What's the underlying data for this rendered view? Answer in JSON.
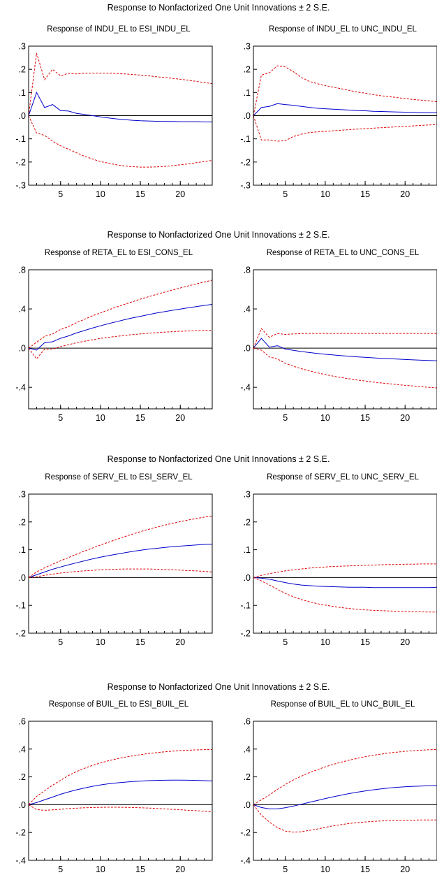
{
  "groups": [
    {
      "title": "Response to Nonfactorized One Unit Innovations ± 2 S.E."
    },
    {
      "title": "Response to Nonfactorized One Unit Innovations ± 2 S.E."
    },
    {
      "title": "Response to Nonfactorized One Unit Innovations ± 2 S.E."
    },
    {
      "title": "Response to Nonfactorized One Unit Innovations ± 2 S.E."
    }
  ],
  "colors": {
    "response": "#0000cc",
    "bands": "#dd0000",
    "zero_line": "#000000"
  },
  "chart_data": [
    {
      "type": "line",
      "title": "Response of INDU_EL to ESI_INDU_EL",
      "xlim": [
        1,
        24
      ],
      "ylim": [
        -0.3,
        0.3
      ],
      "xticks": [
        5,
        10,
        15,
        20
      ],
      "yticks": [
        -0.3,
        -0.2,
        -0.1,
        0.0,
        0.1,
        0.2,
        0.3
      ],
      "ytick_labels": [
        "-.3",
        "-.2",
        "-.1",
        ".0",
        ".1",
        ".2",
        ".3"
      ],
      "x": [
        1,
        2,
        3,
        4,
        5,
        6,
        7,
        8,
        9,
        10,
        11,
        12,
        13,
        14,
        15,
        16,
        17,
        18,
        19,
        20,
        21,
        22,
        23,
        24
      ],
      "series": [
        {
          "role": "response",
          "values": [
            0,
            0.1,
            0.035,
            0.048,
            0.022,
            0.02,
            0.01,
            0.005,
            0,
            -0.005,
            -0.01,
            -0.014,
            -0.017,
            -0.02,
            -0.022,
            -0.023,
            -0.024,
            -0.025,
            -0.025,
            -0.026,
            -0.026,
            -0.026,
            -0.027,
            -0.027
          ]
        },
        {
          "role": "upper",
          "values": [
            0,
            0.27,
            0.155,
            0.2,
            0.172,
            0.183,
            0.18,
            0.183,
            0.183,
            0.183,
            0.183,
            0.182,
            0.18,
            0.178,
            0.175,
            0.172,
            0.168,
            0.165,
            0.161,
            0.157,
            0.153,
            0.148,
            0.143,
            0.138
          ]
        },
        {
          "role": "lower",
          "values": [
            0,
            -0.075,
            -0.085,
            -0.11,
            -0.13,
            -0.145,
            -0.16,
            -0.175,
            -0.187,
            -0.198,
            -0.205,
            -0.212,
            -0.217,
            -0.22,
            -0.222,
            -0.222,
            -0.221,
            -0.219,
            -0.216,
            -0.212,
            -0.208,
            -0.203,
            -0.198,
            -0.193
          ]
        }
      ]
    },
    {
      "type": "line",
      "title": "Response of INDU_EL to UNC_INDU_EL",
      "xlim": [
        1,
        24
      ],
      "ylim": [
        -0.3,
        0.3
      ],
      "xticks": [
        5,
        10,
        15,
        20
      ],
      "yticks": [
        -0.3,
        -0.2,
        -0.1,
        0.0,
        0.1,
        0.2,
        0.3
      ],
      "ytick_labels": [
        "-.3",
        "-.2",
        "-.1",
        ".0",
        ".1",
        ".2",
        ".3"
      ],
      "x": [
        1,
        2,
        3,
        4,
        5,
        6,
        7,
        8,
        9,
        10,
        11,
        12,
        13,
        14,
        15,
        16,
        17,
        18,
        19,
        20,
        21,
        22,
        23,
        24
      ],
      "series": [
        {
          "role": "response",
          "values": [
            0,
            0.035,
            0.04,
            0.052,
            0.048,
            0.045,
            0.04,
            0.036,
            0.032,
            0.03,
            0.028,
            0.026,
            0.024,
            0.022,
            0.021,
            0.019,
            0.018,
            0.017,
            0.016,
            0.015,
            0.014,
            0.013,
            0.012,
            0.012
          ]
        },
        {
          "role": "upper",
          "values": [
            0,
            0.175,
            0.185,
            0.215,
            0.21,
            0.19,
            0.165,
            0.148,
            0.138,
            0.13,
            0.123,
            0.116,
            0.109,
            0.102,
            0.097,
            0.091,
            0.086,
            0.082,
            0.078,
            0.074,
            0.07,
            0.067,
            0.064,
            0.06
          ]
        },
        {
          "role": "lower",
          "values": [
            0,
            -0.105,
            -0.105,
            -0.11,
            -0.108,
            -0.09,
            -0.08,
            -0.073,
            -0.07,
            -0.068,
            -0.065,
            -0.063,
            -0.06,
            -0.058,
            -0.056,
            -0.054,
            -0.052,
            -0.05,
            -0.048,
            -0.046,
            -0.044,
            -0.042,
            -0.04,
            -0.038
          ]
        }
      ]
    },
    {
      "type": "line",
      "title": "Response of RETA_EL to ESI_CONS_EL",
      "xlim": [
        1,
        24
      ],
      "ylim": [
        -0.62,
        0.8
      ],
      "xticks": [
        5,
        10,
        15,
        20
      ],
      "yticks": [
        -0.4,
        0.0,
        0.4,
        0.8
      ],
      "ytick_labels": [
        "-.4",
        ".0",
        ".4",
        ".8"
      ],
      "x": [
        1,
        2,
        3,
        4,
        5,
        6,
        7,
        8,
        9,
        10,
        11,
        12,
        13,
        14,
        15,
        16,
        17,
        18,
        19,
        20,
        21,
        22,
        23,
        24
      ],
      "series": [
        {
          "role": "response",
          "values": [
            0,
            -0.02,
            0.055,
            0.065,
            0.1,
            0.125,
            0.155,
            0.18,
            0.205,
            0.228,
            0.25,
            0.27,
            0.29,
            0.308,
            0.325,
            0.342,
            0.358,
            0.372,
            0.386,
            0.399,
            0.412,
            0.424,
            0.436,
            0.447
          ]
        },
        {
          "role": "upper",
          "values": [
            0,
            0.06,
            0.12,
            0.145,
            0.19,
            0.22,
            0.26,
            0.295,
            0.33,
            0.36,
            0.39,
            0.42,
            0.447,
            0.473,
            0.5,
            0.524,
            0.548,
            0.571,
            0.593,
            0.614,
            0.635,
            0.655,
            0.675,
            0.694
          ]
        },
        {
          "role": "lower",
          "values": [
            0,
            -0.11,
            -0.01,
            -0.01,
            0.015,
            0.035,
            0.055,
            0.07,
            0.085,
            0.1,
            0.11,
            0.12,
            0.13,
            0.138,
            0.145,
            0.152,
            0.158,
            0.163,
            0.168,
            0.172,
            0.175,
            0.178,
            0.18,
            0.182
          ]
        }
      ]
    },
    {
      "type": "line",
      "title": "Response of RETA_EL to UNC_CONS_EL",
      "xlim": [
        1,
        24
      ],
      "ylim": [
        -0.62,
        0.8
      ],
      "xticks": [
        5,
        10,
        15,
        20
      ],
      "yticks": [
        -0.4,
        0.0,
        0.4,
        0.8
      ],
      "ytick_labels": [
        "-.4",
        ".0",
        ".4",
        ".8"
      ],
      "x": [
        1,
        2,
        3,
        4,
        5,
        6,
        7,
        8,
        9,
        10,
        11,
        12,
        13,
        14,
        15,
        16,
        17,
        18,
        19,
        20,
        21,
        22,
        23,
        24
      ],
      "series": [
        {
          "role": "response",
          "values": [
            0,
            0.1,
            0.01,
            0.025,
            -0.01,
            -0.022,
            -0.035,
            -0.045,
            -0.055,
            -0.063,
            -0.07,
            -0.077,
            -0.083,
            -0.089,
            -0.094,
            -0.099,
            -0.104,
            -0.108,
            -0.112,
            -0.116,
            -0.12,
            -0.123,
            -0.126,
            -0.13
          ]
        },
        {
          "role": "upper",
          "values": [
            0,
            0.2,
            0.11,
            0.15,
            0.14,
            0.145,
            0.148,
            0.15,
            0.15,
            0.15,
            0.15,
            0.15,
            0.15,
            0.15,
            0.15,
            0.15,
            0.15,
            0.15,
            0.15,
            0.15,
            0.15,
            0.15,
            0.15,
            0.15
          ]
        },
        {
          "role": "lower",
          "values": [
            0,
            -0.02,
            -0.09,
            -0.11,
            -0.155,
            -0.185,
            -0.21,
            -0.232,
            -0.252,
            -0.27,
            -0.286,
            -0.3,
            -0.313,
            -0.325,
            -0.336,
            -0.346,
            -0.355,
            -0.364,
            -0.372,
            -0.38,
            -0.387,
            -0.394,
            -0.4,
            -0.406
          ]
        }
      ]
    },
    {
      "type": "line",
      "title": "Response of SERV_EL to ESI_SERV_EL",
      "xlim": [
        1,
        24
      ],
      "ylim": [
        -0.2,
        0.3
      ],
      "xticks": [
        5,
        10,
        15,
        20
      ],
      "yticks": [
        -0.2,
        -0.1,
        0.0,
        0.1,
        0.2,
        0.3
      ],
      "ytick_labels": [
        "-.2",
        "-.1",
        ".0",
        ".1",
        ".2",
        ".3"
      ],
      "x": [
        1,
        2,
        3,
        4,
        5,
        6,
        7,
        8,
        9,
        10,
        11,
        12,
        13,
        14,
        15,
        16,
        17,
        18,
        19,
        20,
        21,
        22,
        23,
        24
      ],
      "series": [
        {
          "role": "response",
          "values": [
            0,
            0.01,
            0.02,
            0.03,
            0.038,
            0.046,
            0.053,
            0.06,
            0.067,
            0.073,
            0.079,
            0.084,
            0.089,
            0.094,
            0.098,
            0.102,
            0.105,
            0.108,
            0.111,
            0.113,
            0.115,
            0.117,
            0.119,
            0.12
          ]
        },
        {
          "role": "upper",
          "values": [
            0,
            0.02,
            0.035,
            0.048,
            0.06,
            0.072,
            0.084,
            0.095,
            0.106,
            0.117,
            0.127,
            0.137,
            0.147,
            0.156,
            0.165,
            0.173,
            0.181,
            0.188,
            0.195,
            0.201,
            0.207,
            0.212,
            0.217,
            0.221
          ]
        },
        {
          "role": "lower",
          "values": [
            0,
            0.003,
            0.008,
            0.012,
            0.016,
            0.019,
            0.022,
            0.024,
            0.026,
            0.028,
            0.029,
            0.03,
            0.031,
            0.031,
            0.031,
            0.031,
            0.03,
            0.029,
            0.028,
            0.027,
            0.025,
            0.024,
            0.022,
            0.02
          ]
        }
      ]
    },
    {
      "type": "line",
      "title": "Response of SERV_EL to UNC_SERV_EL",
      "xlim": [
        1,
        24
      ],
      "ylim": [
        -0.2,
        0.3
      ],
      "xticks": [
        5,
        10,
        15,
        20
      ],
      "yticks": [
        -0.2,
        -0.1,
        0.0,
        0.1,
        0.2,
        0.3
      ],
      "ytick_labels": [
        "-.2",
        "-.1",
        ".0",
        ".1",
        ".2",
        ".3"
      ],
      "x": [
        1,
        2,
        3,
        4,
        5,
        6,
        7,
        8,
        9,
        10,
        11,
        12,
        13,
        14,
        15,
        16,
        17,
        18,
        19,
        20,
        21,
        22,
        23,
        24
      ],
      "series": [
        {
          "role": "response",
          "values": [
            0,
            -0.002,
            -0.006,
            -0.012,
            -0.018,
            -0.023,
            -0.027,
            -0.029,
            -0.031,
            -0.032,
            -0.033,
            -0.034,
            -0.035,
            -0.035,
            -0.035,
            -0.036,
            -0.036,
            -0.036,
            -0.036,
            -0.036,
            -0.036,
            -0.036,
            -0.036,
            -0.035
          ]
        },
        {
          "role": "upper",
          "values": [
            0,
            0.008,
            0.014,
            0.019,
            0.024,
            0.028,
            0.031,
            0.034,
            0.036,
            0.038,
            0.04,
            0.041,
            0.042,
            0.043,
            0.044,
            0.045,
            0.046,
            0.047,
            0.047,
            0.048,
            0.048,
            0.049,
            0.049,
            0.049
          ]
        },
        {
          "role": "lower",
          "values": [
            0,
            -0.012,
            -0.027,
            -0.042,
            -0.057,
            -0.069,
            -0.079,
            -0.087,
            -0.094,
            -0.099,
            -0.104,
            -0.108,
            -0.111,
            -0.114,
            -0.116,
            -0.118,
            -0.119,
            -0.12,
            -0.121,
            -0.122,
            -0.123,
            -0.123,
            -0.124,
            -0.124
          ]
        }
      ]
    },
    {
      "type": "line",
      "title": "Response of BUIL_EL to ESI_BUIL_EL",
      "xlim": [
        1,
        24
      ],
      "ylim": [
        -0.4,
        0.6
      ],
      "xticks": [
        5,
        10,
        15,
        20
      ],
      "yticks": [
        -0.4,
        -0.2,
        0.0,
        0.2,
        0.4,
        0.6
      ],
      "ytick_labels": [
        "-.4",
        "-.2",
        ".0",
        ".2",
        ".4",
        ".6"
      ],
      "x": [
        1,
        2,
        3,
        4,
        5,
        6,
        7,
        8,
        9,
        10,
        11,
        12,
        13,
        14,
        15,
        16,
        17,
        18,
        19,
        20,
        21,
        22,
        23,
        24
      ],
      "series": [
        {
          "role": "response",
          "values": [
            0,
            0.015,
            0.035,
            0.055,
            0.075,
            0.092,
            0.107,
            0.12,
            0.132,
            0.142,
            0.15,
            0.157,
            0.162,
            0.167,
            0.17,
            0.173,
            0.175,
            0.176,
            0.177,
            0.177,
            0.176,
            0.175,
            0.173,
            0.171
          ]
        },
        {
          "role": "upper",
          "values": [
            0,
            0.06,
            0.1,
            0.14,
            0.175,
            0.21,
            0.238,
            0.262,
            0.283,
            0.3,
            0.316,
            0.329,
            0.341,
            0.351,
            0.36,
            0.368,
            0.374,
            0.38,
            0.385,
            0.389,
            0.392,
            0.394,
            0.396,
            0.397
          ]
        },
        {
          "role": "lower",
          "values": [
            0,
            -0.035,
            -0.04,
            -0.037,
            -0.033,
            -0.028,
            -0.025,
            -0.022,
            -0.02,
            -0.019,
            -0.018,
            -0.018,
            -0.019,
            -0.02,
            -0.022,
            -0.024,
            -0.027,
            -0.03,
            -0.033,
            -0.036,
            -0.04,
            -0.043,
            -0.047,
            -0.05
          ]
        }
      ]
    },
    {
      "type": "line",
      "title": "Response of BUIL_EL to UNC_BUIL_EL",
      "xlim": [
        1,
        24
      ],
      "ylim": [
        -0.4,
        0.6
      ],
      "xticks": [
        5,
        10,
        15,
        20
      ],
      "yticks": [
        -0.4,
        -0.2,
        0.0,
        0.2,
        0.4,
        0.6
      ],
      "ytick_labels": [
        "-.4",
        "-.2",
        ".0",
        ".2",
        ".4",
        ".6"
      ],
      "x": [
        1,
        2,
        3,
        4,
        5,
        6,
        7,
        8,
        9,
        10,
        11,
        12,
        13,
        14,
        15,
        16,
        17,
        18,
        19,
        20,
        21,
        22,
        23,
        24
      ],
      "series": [
        {
          "role": "response",
          "values": [
            0,
            -0.02,
            -0.03,
            -0.03,
            -0.022,
            -0.01,
            0.003,
            0.017,
            0.03,
            0.044,
            0.057,
            0.069,
            0.08,
            0.09,
            0.099,
            0.107,
            0.114,
            0.12,
            0.125,
            0.129,
            0.132,
            0.134,
            0.136,
            0.137
          ]
        },
        {
          "role": "upper",
          "values": [
            0,
            0.035,
            0.07,
            0.11,
            0.145,
            0.178,
            0.205,
            0.23,
            0.252,
            0.272,
            0.29,
            0.306,
            0.32,
            0.333,
            0.345,
            0.355,
            0.364,
            0.372,
            0.378,
            0.384,
            0.388,
            0.392,
            0.395,
            0.397
          ]
        },
        {
          "role": "lower",
          "values": [
            0,
            -0.075,
            -0.125,
            -0.165,
            -0.19,
            -0.197,
            -0.195,
            -0.185,
            -0.175,
            -0.163,
            -0.152,
            -0.143,
            -0.135,
            -0.129,
            -0.124,
            -0.12,
            -0.117,
            -0.115,
            -0.113,
            -0.112,
            -0.111,
            -0.11,
            -0.11,
            -0.11
          ]
        }
      ]
    }
  ]
}
